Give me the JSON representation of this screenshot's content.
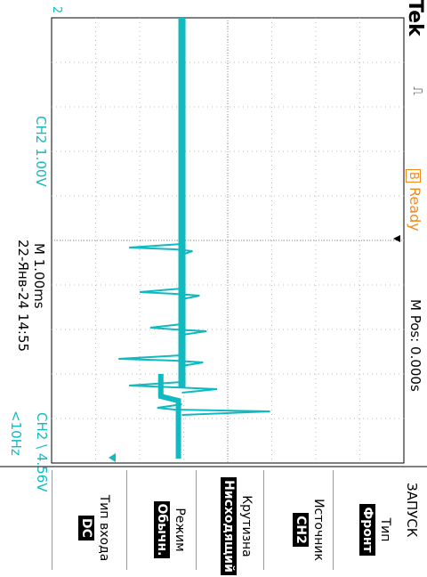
{
  "brand": "Tek",
  "trigger_status": "Ready",
  "trigger_indicator": "B",
  "acquisition_icon": "acquire-waveform-icon",
  "timebase": {
    "position_label": "M Pos: 0.000s",
    "scale_label": "M 1.00ms"
  },
  "channel": {
    "scale_label": "CH2  1.00V",
    "trigger_label": "CH2 \\ 4.56V",
    "frequency_label": "<10Hz",
    "marker": "2",
    "color": "#11b9c0"
  },
  "datetime": "22-Янв-24 14:55",
  "menu": {
    "title": "ЗАПУСК",
    "items": [
      {
        "label": "Тип",
        "value": "Фронт"
      },
      {
        "label": "Источник",
        "value": "CH2"
      },
      {
        "label": "Крутизна",
        "value": "Нисходящий"
      },
      {
        "label": "Режим",
        "value": "Обычн."
      },
      {
        "label": "Тип входа",
        "value": "DC"
      }
    ]
  },
  "waveform": {
    "baseline_level": 0.37,
    "glitches": [
      {
        "t": 0.52,
        "min": 0.22,
        "max": 0.4
      },
      {
        "t": 0.62,
        "min": 0.25,
        "max": 0.42
      },
      {
        "t": 0.7,
        "min": 0.28,
        "max": 0.44
      },
      {
        "t": 0.77,
        "min": 0.19,
        "max": 0.43
      },
      {
        "t": 0.83,
        "min": 0.22,
        "max": 0.47
      },
      {
        "t": 0.88,
        "min": 0.3,
        "max": 0.62
      }
    ]
  }
}
